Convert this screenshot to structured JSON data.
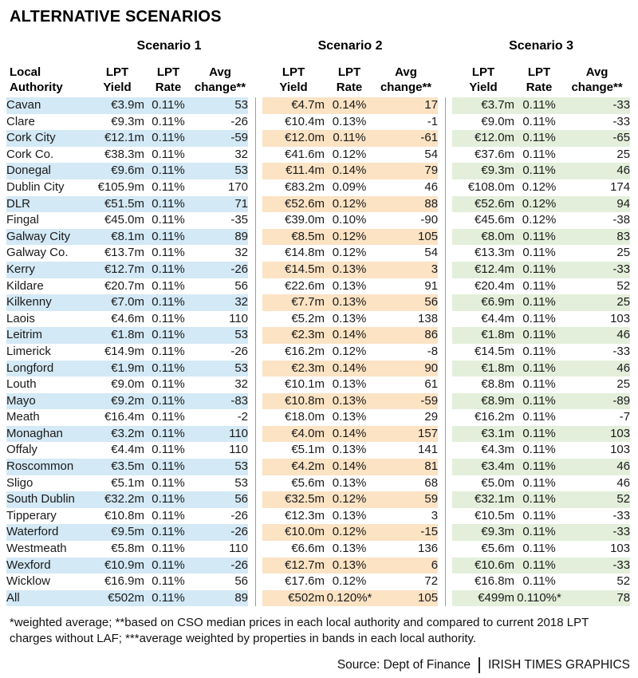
{
  "title": "ALTERNATIVE SCENARIOS",
  "colors": {
    "scenario1_band": "#d3e9f5",
    "scenario2_band": "#fbe3c4",
    "scenario3_band": "#e3efda",
    "separator": "#9d9d9d"
  },
  "header": {
    "scenario_titles": [
      "Scenario 1",
      "Scenario 2",
      "Scenario 3"
    ],
    "authority_col": {
      "line1": "Local",
      "line2": "Authority"
    },
    "yield_col": {
      "line1": "LPT",
      "line2": "Yield"
    },
    "rate_col": {
      "line1": "LPT",
      "line2": "Rate"
    },
    "change_col": {
      "line1": "Avg",
      "line2": "change**"
    }
  },
  "chart_data": {
    "type": "table",
    "title": "ALTERNATIVE SCENARIOS",
    "columns": [
      "Local Authority",
      "Scenario 1 LPT Yield",
      "Scenario 1 LPT Rate",
      "Scenario 1 Avg change**",
      "Scenario 2 LPT Yield",
      "Scenario 2 LPT Rate",
      "Scenario 2 Avg change**",
      "Scenario 3 LPT Yield",
      "Scenario 3 LPT Rate",
      "Scenario 3 Avg change**"
    ],
    "rows": [
      [
        "Cavan",
        "€3.9m",
        "0.11%",
        "53",
        "€4.7m",
        "0.14%",
        "17",
        "€3.7m",
        "0.11%",
        "-33"
      ],
      [
        "Clare",
        "€9.3m",
        "0.11%",
        "-26",
        "€10.4m",
        "0.13%",
        "-1",
        "€9.0m",
        "0.11%",
        "-33"
      ],
      [
        "Cork City",
        "€12.1m",
        "0.11%",
        "-59",
        "€12.0m",
        "0.11%",
        "-61",
        "€12.0m",
        "0.11%",
        "-65"
      ],
      [
        "Cork Co.",
        "€38.3m",
        "0.11%",
        "32",
        "€41.6m",
        "0.12%",
        "54",
        "€37.6m",
        "0.11%",
        "25"
      ],
      [
        "Donegal",
        "€9.6m",
        "0.11%",
        "53",
        "€11.4m",
        "0.14%",
        "79",
        "€9.3m",
        "0.11%",
        "46"
      ],
      [
        "Dublin City",
        "€105.9m",
        "0.11%",
        "170",
        "€83.2m",
        "0.09%",
        "46",
        "€108.0m",
        "0.12%",
        "174"
      ],
      [
        "DLR",
        "€51.5m",
        "0.11%",
        "71",
        "€52.6m",
        "0.12%",
        "88",
        "€52.6m",
        "0.12%",
        "94"
      ],
      [
        "Fingal",
        "€45.0m",
        "0.11%",
        "-35",
        "€39.0m",
        "0.10%",
        "-90",
        "€45.6m",
        "0.12%",
        "-38"
      ],
      [
        "Galway City",
        "€8.1m",
        "0.11%",
        "89",
        "€8.5m",
        "0.12%",
        "105",
        "€8.0m",
        "0.11%",
        "83"
      ],
      [
        "Galway Co.",
        "€13.7m",
        "0.11%",
        "32",
        "€14.8m",
        "0.12%",
        "54",
        "€13.3m",
        "0.11%",
        "25"
      ],
      [
        "Kerry",
        "€12.7m",
        "0.11%",
        "-26",
        "€14.5m",
        "0.13%",
        "3",
        "€12.4m",
        "0.11%",
        "-33"
      ],
      [
        "Kildare",
        "€20.7m",
        "0.11%",
        "56",
        "€22.6m",
        "0.13%",
        "91",
        "€20.4m",
        "0.11%",
        "52"
      ],
      [
        "Kilkenny",
        "€7.0m",
        "0.11%",
        "32",
        "€7.7m",
        "0.13%",
        "56",
        "€6.9m",
        "0.11%",
        "25"
      ],
      [
        "Laois",
        "€4.6m",
        "0.11%",
        "110",
        "€5.2m",
        "0.13%",
        "138",
        "€4.4m",
        "0.11%",
        "103"
      ],
      [
        "Leitrim",
        "€1.8m",
        "0.11%",
        "53",
        "€2.3m",
        "0.14%",
        "86",
        "€1.8m",
        "0.11%",
        "46"
      ],
      [
        "Limerick",
        "€14.9m",
        "0.11%",
        "-26",
        "€16.2m",
        "0.12%",
        "-8",
        "€14.5m",
        "0.11%",
        "-33"
      ],
      [
        "Longford",
        "€1.9m",
        "0.11%",
        "53",
        "€2.3m",
        "0.14%",
        "90",
        "€1.8m",
        "0.11%",
        "46"
      ],
      [
        "Louth",
        "€9.0m",
        "0.11%",
        "32",
        "€10.1m",
        "0.13%",
        "61",
        "€8.8m",
        "0.11%",
        "25"
      ],
      [
        "Mayo",
        "€9.2m",
        "0.11%",
        "-83",
        "€10.8m",
        "0.13%",
        "-59",
        "€8.9m",
        "0.11%",
        "-89"
      ],
      [
        "Meath",
        "€16.4m",
        "0.11%",
        "-2",
        "€18.0m",
        "0.13%",
        "29",
        "€16.2m",
        "0.11%",
        "-7"
      ],
      [
        "Monaghan",
        "€3.2m",
        "0.11%",
        "110",
        "€4.0m",
        "0.14%",
        "157",
        "€3.1m",
        "0.11%",
        "103"
      ],
      [
        "Offaly",
        "€4.4m",
        "0.11%",
        "110",
        "€5.1m",
        "0.13%",
        "141",
        "€4.3m",
        "0.11%",
        "103"
      ],
      [
        "Roscommon",
        "€3.5m",
        "0.11%",
        "53",
        "€4.2m",
        "0.14%",
        "81",
        "€3.4m",
        "0.11%",
        "46"
      ],
      [
        "Sligo",
        "€5.1m",
        "0.11%",
        "53",
        "€5.6m",
        "0.13%",
        "68",
        "€5.0m",
        "0.11%",
        "46"
      ],
      [
        "South Dublin",
        "€32.2m",
        "0.11%",
        "56",
        "€32.5m",
        "0.12%",
        "59",
        "€32.1m",
        "0.11%",
        "52"
      ],
      [
        "Tipperary",
        "€10.8m",
        "0.11%",
        "-26",
        "€12.3m",
        "0.13%",
        "3",
        "€10.5m",
        "0.11%",
        "-33"
      ],
      [
        "Waterford",
        "€9.5m",
        "0.11%",
        "-26",
        "€10.0m",
        "0.12%",
        "-15",
        "€9.3m",
        "0.11%",
        "-33"
      ],
      [
        "Westmeath",
        "€5.8m",
        "0.11%",
        "110",
        "€6.6m",
        "0.13%",
        "136",
        "€5.6m",
        "0.11%",
        "103"
      ],
      [
        "Wexford",
        "€10.9m",
        "0.11%",
        "-26",
        "€12.7m",
        "0.13%",
        "6",
        "€10.6m",
        "0.11%",
        "-33"
      ],
      [
        "Wicklow",
        "€16.9m",
        "0.11%",
        "56",
        "€17.6m",
        "0.12%",
        "72",
        "€16.8m",
        "0.11%",
        "52"
      ],
      [
        "All",
        "€502m",
        "0.11%",
        "89",
        "€502m",
        "0.120%*",
        "105",
        "€499m",
        "0.110%*",
        "78"
      ]
    ]
  },
  "footnote": "*weighted average; **based on CSO median prices in each local authority and compared to current 2018 LPT charges without LAF; ***average weighted by properties in bands in each local authority.",
  "source": "Source: Dept of Finance",
  "credit": "IRISH TIMES GRAPHICS"
}
